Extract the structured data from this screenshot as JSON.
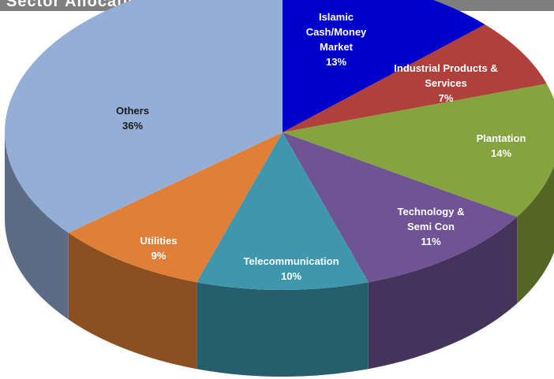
{
  "header": {
    "title": "Sector Allocation"
  },
  "chart_data": {
    "type": "pie",
    "style": "3d-exploded",
    "unit": "%",
    "slices": [
      {
        "label": "Islamic Cash/Money Market",
        "label_lines": [
          "Islamic",
          "Cash/Money",
          "Market"
        ],
        "value": 13,
        "value_label": "13%",
        "color": "#0000cc"
      },
      {
        "label": "Industrial Products & Services",
        "label_lines": [
          "Industrial Products &",
          "Services"
        ],
        "value": 7,
        "value_label": "7%",
        "color": "#b0403c"
      },
      {
        "label": "Plantation",
        "label_lines": [
          "Plantation"
        ],
        "value": 14,
        "value_label": "14%",
        "color": "#86a43e"
      },
      {
        "label": "Technology & Semi Con",
        "label_lines": [
          "Technology &",
          "Semi Con"
        ],
        "value": 11,
        "value_label": "11%",
        "color": "#6f5395"
      },
      {
        "label": "Telecommunication",
        "label_lines": [
          "Telecommunication"
        ],
        "value": 10,
        "value_label": "10%",
        "color": "#3f97ae"
      },
      {
        "label": "Utilities",
        "label_lines": [
          "Utilities"
        ],
        "value": 9,
        "value_label": "9%",
        "color": "#e07f37"
      },
      {
        "label": "Others",
        "label_lines": [
          "Others"
        ],
        "value": 36,
        "value_label": "36%",
        "color": "#95aed6"
      }
    ]
  }
}
